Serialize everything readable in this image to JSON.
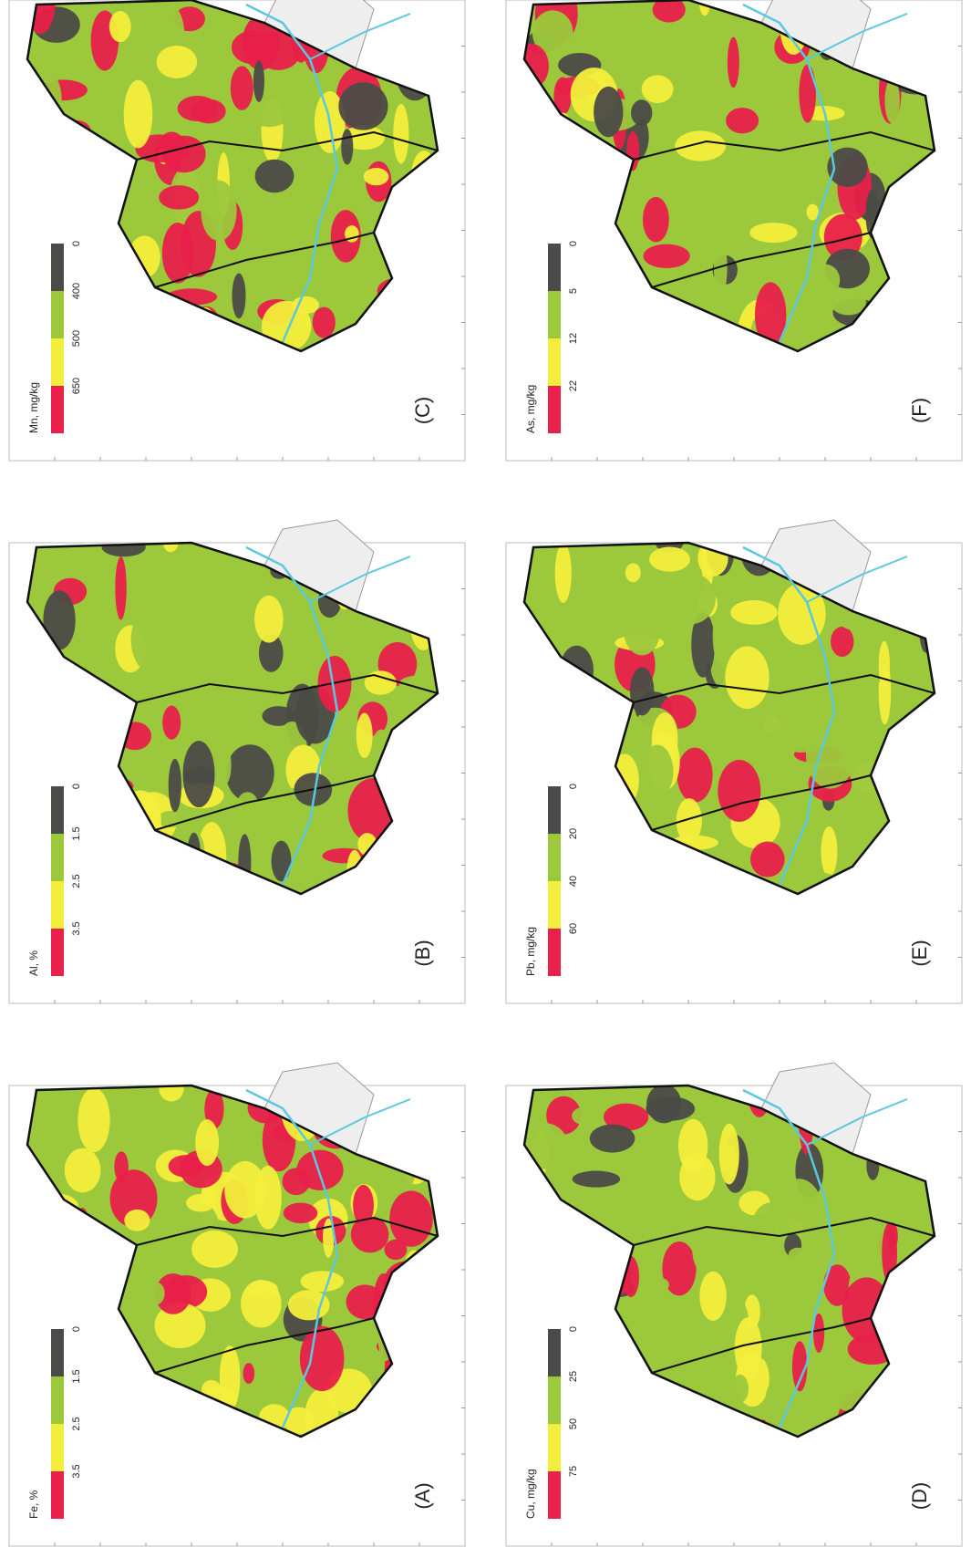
{
  "panels": [
    {
      "label": "(C)",
      "legend_title": "Mn, mg/kg",
      "legend_ticks": [
        650,
        500,
        400,
        0
      ]
    },
    {
      "label": "(B)",
      "legend_title": "Al, %",
      "legend_ticks": [
        3.5,
        2.5,
        1.5,
        0
      ]
    },
    {
      "label": "(A)",
      "legend_title": "Fe, %",
      "legend_ticks": [
        3.5,
        2.5,
        1.5,
        0
      ]
    },
    {
      "label": "(F)",
      "legend_title": "As, mg/kg",
      "legend_ticks": [
        22,
        12,
        5,
        0
      ]
    },
    {
      "label": "(E)",
      "legend_title": "Pb, mg/kg",
      "legend_ticks": [
        60,
        40,
        20,
        0
      ]
    },
    {
      "label": "(D)",
      "legend_title": "Cu, mg/kg",
      "legend_ticks": [
        75,
        50,
        25,
        0
      ]
    }
  ]
}
